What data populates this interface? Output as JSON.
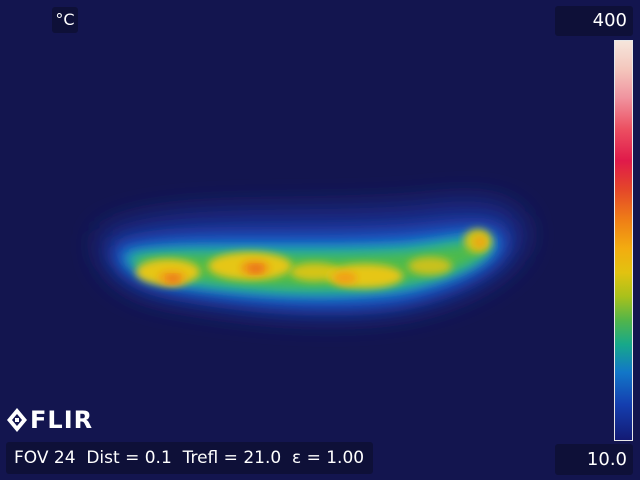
{
  "unit": "°C",
  "scale": {
    "max": "400",
    "min": "10.0"
  },
  "logo": {
    "brand": "FLIR"
  },
  "params": {
    "fov": "FOV 24",
    "dist": "Dist = 0.1",
    "trefl": "Trefl = 21.0",
    "emissivity": "ε = 1.00"
  },
  "colors": {
    "background": "#13154f",
    "label_bg": "#0e1038",
    "text": "#ffffff"
  },
  "icons": {
    "logo_mark": "flir-logo-icon"
  }
}
